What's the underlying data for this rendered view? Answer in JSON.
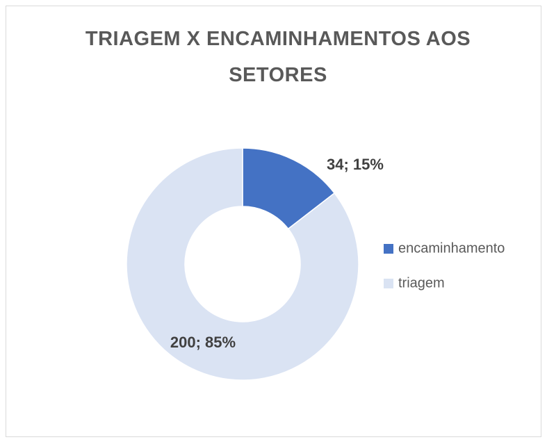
{
  "chart_data": {
    "type": "doughnut",
    "title": "TRIAGEM X ENCAMINHAMENTOS AOS SETORES",
    "categories": [
      "encaminhamento",
      "triagem"
    ],
    "values": [
      34,
      200
    ],
    "value_labels": [
      "34; 15%",
      "200; 85%"
    ],
    "colors": [
      "#4472c4",
      "#dae3f3"
    ],
    "legend": "right"
  }
}
